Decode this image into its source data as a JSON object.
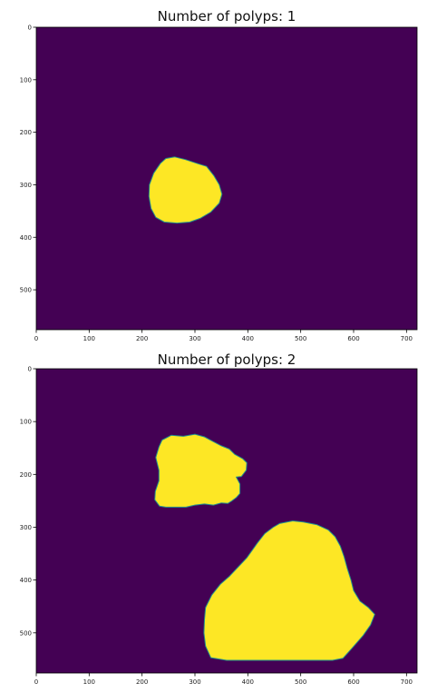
{
  "chart_data": [
    {
      "type": "heatmap",
      "title": "Number of polyps: 1",
      "colormap": "viridis",
      "background_color": "#440154",
      "foreground_color": "#fde725",
      "edge_color": "#21918c",
      "xlim": [
        0,
        720
      ],
      "ylim": [
        576,
        0
      ],
      "xticks": [
        0,
        100,
        200,
        300,
        400,
        500,
        600,
        700
      ],
      "yticks": [
        0,
        100,
        200,
        300,
        400,
        500
      ],
      "grid": false,
      "regions": [
        {
          "label": "polyp",
          "outline": [
            [
              245,
              250
            ],
            [
              262,
              247
            ],
            [
              282,
              252
            ],
            [
              306,
              260
            ],
            [
              322,
              265
            ],
            [
              336,
              283
            ],
            [
              346,
              300
            ],
            [
              351,
              318
            ],
            [
              346,
              335
            ],
            [
              330,
              352
            ],
            [
              310,
              364
            ],
            [
              290,
              371
            ],
            [
              266,
              373
            ],
            [
              242,
              371
            ],
            [
              226,
              362
            ],
            [
              217,
              345
            ],
            [
              213,
              322
            ],
            [
              214,
              300
            ],
            [
              222,
              278
            ],
            [
              235,
              259
            ]
          ]
        }
      ]
    },
    {
      "type": "heatmap",
      "title": "Number of polyps: 2",
      "colormap": "viridis",
      "background_color": "#440154",
      "foreground_color": "#fde725",
      "edge_color": "#21918c",
      "xlim": [
        0,
        720
      ],
      "ylim": [
        576,
        0
      ],
      "xticks": [
        0,
        100,
        200,
        300,
        400,
        500,
        600,
        700
      ],
      "yticks": [
        0,
        100,
        200,
        300,
        400,
        500
      ],
      "grid": false,
      "regions": [
        {
          "label": "polyp",
          "outline": [
            [
              238,
              135
            ],
            [
              255,
              126
            ],
            [
              278,
              128
            ],
            [
              300,
              124
            ],
            [
              318,
              129
            ],
            [
              335,
              138
            ],
            [
              350,
              146
            ],
            [
              365,
              152
            ],
            [
              375,
              162
            ],
            [
              390,
              170
            ],
            [
              398,
              178
            ],
            [
              397,
              192
            ],
            [
              388,
              204
            ],
            [
              378,
              205
            ],
            [
              385,
              218
            ],
            [
              385,
              236
            ],
            [
              378,
              244
            ],
            [
              370,
              250
            ],
            [
              362,
              255
            ],
            [
              350,
              254
            ],
            [
              335,
              258
            ],
            [
              318,
              256
            ],
            [
              300,
              258
            ],
            [
              283,
              262
            ],
            [
              267,
              262
            ],
            [
              245,
              262
            ],
            [
              233,
              260
            ],
            [
              224,
              248
            ],
            [
              225,
              232
            ],
            [
              232,
              212
            ],
            [
              232,
              192
            ],
            [
              226,
              168
            ],
            [
              232,
              148
            ]
          ]
        },
        {
          "label": "polyp",
          "outline": [
            [
              460,
              293
            ],
            [
              485,
              288
            ],
            [
              505,
              290
            ],
            [
              530,
              295
            ],
            [
              552,
              305
            ],
            [
              565,
              318
            ],
            [
              575,
              336
            ],
            [
              582,
              356
            ],
            [
              588,
              378
            ],
            [
              595,
              400
            ],
            [
              600,
              420
            ],
            [
              612,
              440
            ],
            [
              628,
              452
            ],
            [
              640,
              465
            ],
            [
              632,
              485
            ],
            [
              618,
              505
            ],
            [
              598,
              528
            ],
            [
              580,
              548
            ],
            [
              560,
              552
            ],
            [
              520,
              552
            ],
            [
              480,
              552
            ],
            [
              440,
              552
            ],
            [
              400,
              552
            ],
            [
              360,
              552
            ],
            [
              330,
              547
            ],
            [
              320,
              525
            ],
            [
              317,
              500
            ],
            [
              318,
              475
            ],
            [
              320,
              452
            ],
            [
              332,
              428
            ],
            [
              348,
              408
            ],
            [
              365,
              393
            ],
            [
              382,
              375
            ],
            [
              398,
              358
            ],
            [
              418,
              330
            ],
            [
              432,
              312
            ],
            [
              448,
              300
            ]
          ]
        }
      ]
    }
  ]
}
